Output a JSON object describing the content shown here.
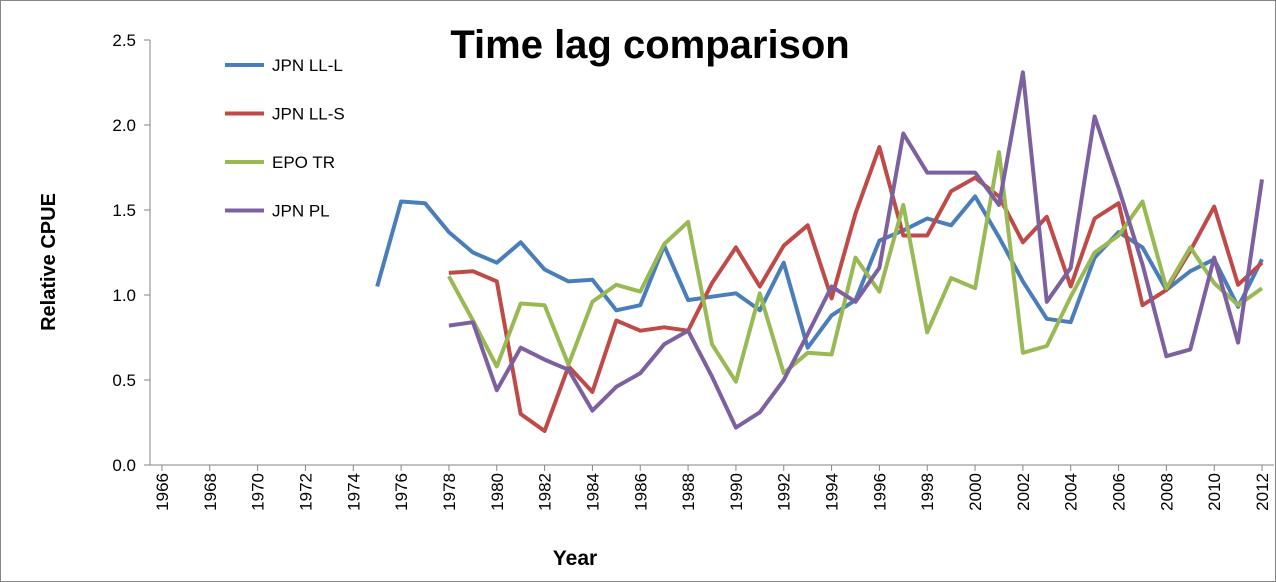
{
  "chart_data": {
    "type": "line",
    "title": "Time lag comparison",
    "x_label": "Year",
    "y_label": "Relative CPUE",
    "x": [
      1966,
      1967,
      1968,
      1969,
      1970,
      1971,
      1972,
      1973,
      1974,
      1975,
      1976,
      1977,
      1978,
      1979,
      1980,
      1981,
      1982,
      1983,
      1984,
      1985,
      1986,
      1987,
      1988,
      1989,
      1990,
      1991,
      1992,
      1993,
      1994,
      1995,
      1996,
      1997,
      1998,
      1999,
      2000,
      2001,
      2002,
      2003,
      2004,
      2005,
      2006,
      2007,
      2008,
      2009,
      2010,
      2011,
      2012
    ],
    "xlim": [
      1965.5,
      2012.5
    ],
    "xticks": [
      1966,
      1968,
      1970,
      1972,
      1974,
      1976,
      1978,
      1980,
      1982,
      1984,
      1986,
      1988,
      1990,
      1992,
      1994,
      1996,
      1998,
      2000,
      2002,
      2004,
      2006,
      2008,
      2010,
      2012
    ],
    "ylim": [
      0,
      2.5
    ],
    "yticks": [
      {
        "value": 0,
        "label": "0.0"
      },
      0.5,
      {
        "value": 1,
        "label": "1.0"
      },
      1.5,
      {
        "value": 2,
        "label": "2.0"
      },
      2.5
    ],
    "grid": false,
    "legend": "upper left",
    "series": [
      {
        "name": "JPN LL-L",
        "color": "#4a7ebb",
        "values": [
          null,
          null,
          null,
          null,
          null,
          null,
          null,
          null,
          null,
          1.05,
          1.55,
          1.54,
          1.37,
          1.25,
          1.19,
          1.31,
          1.15,
          1.08,
          1.09,
          0.91,
          0.94,
          1.29,
          0.97,
          0.99,
          1.01,
          0.91,
          1.19,
          0.69,
          0.88,
          0.97,
          1.32,
          1.38,
          1.45,
          1.41,
          1.58,
          1.34,
          1.08,
          0.86,
          0.84,
          1.22,
          1.37,
          1.28,
          1.03,
          1.14,
          1.21,
          0.93,
          1.21
        ]
      },
      {
        "name": "JPN LL-S",
        "color": "#be4b48",
        "values": [
          null,
          null,
          null,
          null,
          null,
          null,
          null,
          null,
          null,
          null,
          null,
          null,
          1.13,
          1.14,
          1.08,
          0.3,
          0.2,
          0.58,
          0.43,
          0.85,
          0.79,
          0.81,
          0.79,
          1.07,
          1.28,
          1.05,
          1.29,
          1.41,
          0.98,
          1.48,
          1.87,
          1.35,
          1.35,
          1.61,
          1.69,
          1.58,
          1.31,
          1.46,
          1.05,
          1.45,
          1.54,
          0.94,
          1.03,
          1.26,
          1.52,
          1.06,
          1.19
        ]
      },
      {
        "name": "EPO TR",
        "color": "#98b954",
        "values": [
          null,
          null,
          null,
          null,
          null,
          null,
          null,
          null,
          null,
          null,
          null,
          null,
          1.11,
          0.85,
          0.58,
          0.95,
          0.94,
          0.59,
          0.96,
          1.06,
          1.02,
          1.3,
          1.43,
          0.71,
          0.49,
          1.01,
          0.54,
          0.66,
          0.65,
          1.22,
          1.02,
          1.53,
          0.78,
          1.1,
          1.04,
          1.84,
          0.66,
          0.7,
          0.99,
          1.25,
          1.35,
          1.55,
          1.04,
          1.28,
          1.07,
          0.94,
          1.04
        ]
      },
      {
        "name": "JPN PL",
        "color": "#7d60a0",
        "values": [
          null,
          null,
          null,
          null,
          null,
          null,
          null,
          null,
          null,
          null,
          null,
          null,
          0.82,
          0.84,
          0.44,
          0.69,
          0.62,
          0.56,
          0.32,
          0.46,
          0.54,
          0.71,
          0.79,
          0.52,
          0.22,
          0.31,
          0.5,
          0.77,
          1.05,
          0.96,
          1.16,
          1.95,
          1.72,
          1.72,
          1.72,
          1.53,
          2.31,
          0.96,
          1.16,
          2.05,
          1.63,
          1.18,
          0.64,
          0.68,
          1.22,
          0.72,
          1.68
        ]
      }
    ]
  }
}
